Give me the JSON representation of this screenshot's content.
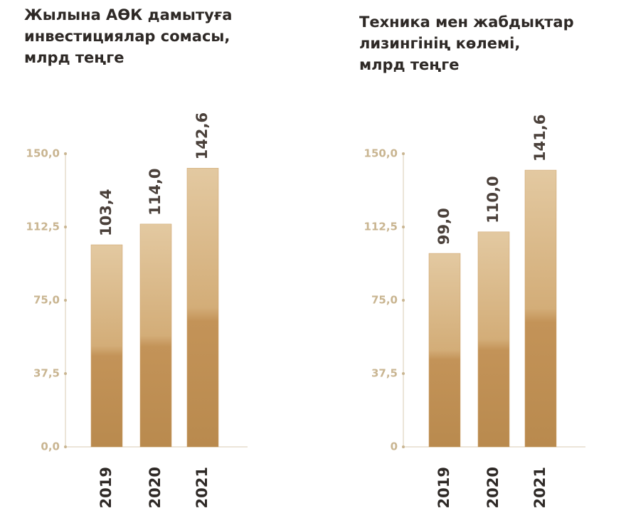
{
  "chart_data": [
    {
      "type": "bar",
      "title": "Жылына АӨК дамытуға\nинвестициялар сомасы,\nмлрд теңге",
      "categories": [
        "2019",
        "2020",
        "2021"
      ],
      "values": [
        103.4,
        114.0,
        142.6
      ],
      "value_labels": [
        "103,4",
        "114,0",
        "142,6"
      ],
      "ylim": [
        0,
        150
      ],
      "yticks": [
        {
          "value": 0,
          "label": "0,0"
        },
        {
          "value": 37.5,
          "label": "37,5"
        },
        {
          "value": 75,
          "label": "75,0"
        },
        {
          "value": 112.5,
          "label": "112,5"
        },
        {
          "value": 150,
          "label": "150,0"
        }
      ],
      "color": "#c99d63"
    },
    {
      "type": "bar",
      "title": "Техника мен жабдықтар\nлизингінің көлемі,\nмлрд теңге",
      "categories": [
        "2019",
        "2020",
        "2021"
      ],
      "values": [
        99.0,
        110.0,
        141.6
      ],
      "value_labels": [
        "99,0",
        "110,0",
        "141,6"
      ],
      "ylim": [
        0,
        150
      ],
      "yticks": [
        0,
        {
          "value": 37.5,
          "label": "37,5"
        },
        {
          "value": 75,
          "label": "75,0"
        },
        {
          "value": 112.5,
          "label": "112,5"
        },
        {
          "value": 150,
          "label": "150,0"
        }
      ],
      "color": "#c99d63"
    }
  ]
}
